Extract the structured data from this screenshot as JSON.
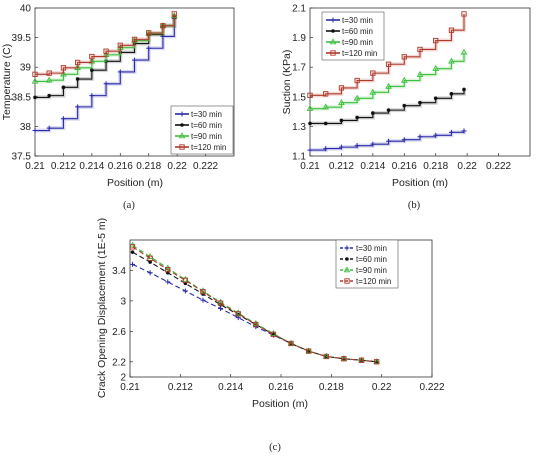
{
  "chart_data": [
    {
      "id": "a",
      "type": "line",
      "panel_label": "(a)",
      "xlabel": "Position (m)",
      "ylabel": "Temperature (C)",
      "xlim": [
        0.21,
        0.224
      ],
      "ylim": [
        37.5,
        40
      ],
      "xticks": [
        0.21,
        0.212,
        0.214,
        0.216,
        0.218,
        0.22,
        0.222
      ],
      "yticks": [
        37.5,
        38,
        38.5,
        39,
        39.5,
        40
      ],
      "xtick_labels": [
        "0.21",
        "0.212",
        "0.214",
        "0.216",
        "0.218",
        "0.22",
        "0.222"
      ],
      "ytick_labels": [
        "37.5",
        "38",
        "38.5",
        "39",
        "39.5",
        "40"
      ],
      "legend": "bottom-right",
      "grid": false,
      "x": [
        0.21,
        0.211,
        0.212,
        0.213,
        0.214,
        0.215,
        0.216,
        0.217,
        0.218,
        0.219,
        0.2198
      ],
      "series": [
        {
          "name": "t=30 min",
          "color": "#2a2aa8",
          "marker": "plus",
          "step": true,
          "values": [
            37.93,
            37.97,
            38.13,
            38.33,
            38.52,
            38.72,
            38.92,
            39.12,
            39.32,
            39.52,
            39.82
          ]
        },
        {
          "name": "t=60 min",
          "color": "#111111",
          "marker": "dot",
          "step": true,
          "values": [
            38.49,
            38.52,
            38.66,
            38.8,
            38.95,
            39.1,
            39.25,
            39.4,
            39.55,
            39.7,
            39.85
          ]
        },
        {
          "name": "t=90 min",
          "color": "#3cbf3c",
          "marker": "triangle",
          "step": true,
          "values": [
            38.76,
            38.78,
            38.88,
            38.99,
            39.1,
            39.21,
            39.33,
            39.45,
            39.57,
            39.7,
            39.87
          ]
        },
        {
          "name": "t=120 min",
          "color": "#b03a2a",
          "marker": "square",
          "step": true,
          "values": [
            38.88,
            38.9,
            38.99,
            39.08,
            39.18,
            39.27,
            39.37,
            39.47,
            39.58,
            39.7,
            39.9
          ]
        }
      ]
    },
    {
      "id": "b",
      "type": "line",
      "panel_label": "(b)",
      "xlabel": "Position (m)",
      "ylabel": "Suction (KPa)",
      "xlim": [
        0.21,
        0.224
      ],
      "ylim": [
        1.1,
        2.1
      ],
      "xticks": [
        0.21,
        0.212,
        0.214,
        0.216,
        0.218,
        0.22,
        0.222
      ],
      "yticks": [
        1.1,
        1.3,
        1.5,
        1.7,
        1.9,
        2.1
      ],
      "xtick_labels": [
        "0.21",
        "0.212",
        "0.214",
        "0.216",
        "0.218",
        "0.22",
        "0.222"
      ],
      "ytick_labels": [
        "1.1",
        "1.3",
        "1.5",
        "1.7",
        "1.9",
        "2.1"
      ],
      "legend": "top-left",
      "grid": false,
      "x": [
        0.21,
        0.211,
        0.212,
        0.213,
        0.214,
        0.215,
        0.216,
        0.217,
        0.218,
        0.219,
        0.2198
      ],
      "series": [
        {
          "name": "t=30 min",
          "color": "#2a2aa8",
          "marker": "plus",
          "step": true,
          "values": [
            1.14,
            1.15,
            1.16,
            1.17,
            1.18,
            1.2,
            1.21,
            1.23,
            1.24,
            1.26,
            1.27
          ]
        },
        {
          "name": "t=60 min",
          "color": "#111111",
          "marker": "dot",
          "step": true,
          "values": [
            1.32,
            1.32,
            1.34,
            1.36,
            1.39,
            1.41,
            1.44,
            1.46,
            1.49,
            1.52,
            1.55
          ]
        },
        {
          "name": "t=90 min",
          "color": "#3cbf3c",
          "marker": "triangle",
          "step": true,
          "values": [
            1.42,
            1.43,
            1.46,
            1.49,
            1.53,
            1.57,
            1.61,
            1.65,
            1.69,
            1.74,
            1.8
          ]
        },
        {
          "name": "t=120 min",
          "color": "#b03a2a",
          "marker": "square",
          "step": true,
          "values": [
            1.51,
            1.52,
            1.56,
            1.61,
            1.66,
            1.72,
            1.77,
            1.82,
            1.88,
            1.95,
            2.06
          ]
        }
      ]
    },
    {
      "id": "c",
      "type": "line",
      "panel_label": "(c)",
      "xlabel": "Position (m)",
      "ylabel": "Crack Opening Displacement (1E-5 m)",
      "xlim": [
        0.21,
        0.222
      ],
      "ylim": [
        2.0,
        3.8
      ],
      "xticks": [
        0.21,
        0.212,
        0.214,
        0.216,
        0.218,
        0.22,
        0.222
      ],
      "yticks": [
        2,
        2.2,
        2.6,
        3,
        3.4
      ],
      "xtick_labels": [
        "0.21",
        "0.212",
        "0.214",
        "0.216",
        "0.218",
        "0.22",
        "0.222"
      ],
      "ytick_labels": [
        "2",
        "2.2",
        "2.6",
        "3",
        "3.4"
      ],
      "legend": "top-right",
      "grid": false,
      "x": [
        0.2101,
        0.2108,
        0.2115,
        0.2122,
        0.2129,
        0.2136,
        0.2143,
        0.215,
        0.2157,
        0.2164,
        0.2171,
        0.2178,
        0.2185,
        0.2192,
        0.2198
      ],
      "series": [
        {
          "name": "t=30 min",
          "color": "#2a2aa8",
          "marker": "plus",
          "dash": "5,3",
          "values": [
            3.48,
            3.37,
            3.25,
            3.13,
            3.01,
            2.9,
            2.78,
            2.66,
            2.55,
            2.44,
            2.34,
            2.27,
            2.24,
            2.22,
            2.2
          ]
        },
        {
          "name": "t=60 min",
          "color": "#111111",
          "marker": "dot",
          "dash": "5,3",
          "values": [
            3.64,
            3.51,
            3.37,
            3.23,
            3.09,
            2.95,
            2.82,
            2.69,
            2.56,
            2.44,
            2.34,
            2.27,
            2.24,
            2.22,
            2.2
          ]
        },
        {
          "name": "t=90 min",
          "color": "#3cbf3c",
          "marker": "triangle",
          "dash": "5,3",
          "values": [
            3.73,
            3.58,
            3.43,
            3.28,
            3.13,
            2.98,
            2.84,
            2.7,
            2.57,
            2.44,
            2.34,
            2.27,
            2.24,
            2.22,
            2.2
          ]
        },
        {
          "name": "t=120 min",
          "color": "#b03a2a",
          "marker": "square",
          "dash": "5,3",
          "values": [
            3.71,
            3.56,
            3.41,
            3.27,
            3.12,
            2.97,
            2.83,
            2.69,
            2.56,
            2.44,
            2.34,
            2.27,
            2.24,
            2.22,
            2.2
          ]
        }
      ]
    }
  ]
}
